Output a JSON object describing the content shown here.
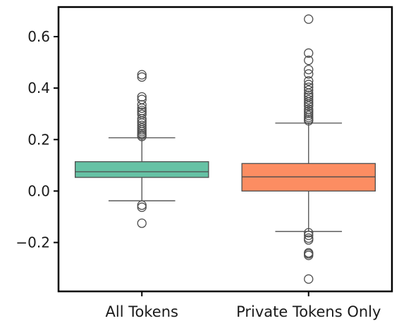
{
  "chart_data": {
    "type": "box",
    "categories": [
      "All Tokens",
      "Private Tokens Only"
    ],
    "ylim": [
      -0.39,
      0.715
    ],
    "yticks": [
      -0.2,
      0.0,
      0.2,
      0.4,
      0.6
    ],
    "ytick_labels": [
      "−0.2",
      "0.0",
      "0.2",
      "0.4",
      "0.6"
    ],
    "boxes": [
      {
        "category": "All Tokens",
        "color": "#66c2a5",
        "q1": 0.053,
        "median": 0.075,
        "q3": 0.114,
        "whisker_low": -0.038,
        "whisker_high": 0.207,
        "outliers": [
          0.452,
          0.443,
          0.366,
          0.356,
          0.335,
          0.322,
          0.313,
          0.306,
          0.298,
          0.281,
          0.272,
          0.264,
          0.255,
          0.246,
          0.238,
          0.231,
          0.224,
          0.218,
          0.212,
          -0.055,
          -0.063,
          -0.125
        ]
      },
      {
        "category": "Private Tokens Only",
        "color": "#fc8d62",
        "q1": 0.0,
        "median": 0.055,
        "q3": 0.107,
        "whisker_low": -0.157,
        "whisker_high": 0.264,
        "outliers": [
          0.668,
          0.536,
          0.508,
          0.472,
          0.455,
          0.428,
          0.414,
          0.403,
          0.392,
          0.38,
          0.372,
          0.365,
          0.355,
          0.346,
          0.338,
          0.33,
          0.318,
          0.31,
          0.302,
          0.294,
          0.286,
          0.279,
          0.273,
          -0.162,
          -0.172,
          -0.183,
          -0.19,
          -0.24,
          -0.244,
          -0.25,
          -0.342
        ]
      }
    ],
    "xlabel": "",
    "ylabel": "",
    "title": "",
    "grid": false
  }
}
